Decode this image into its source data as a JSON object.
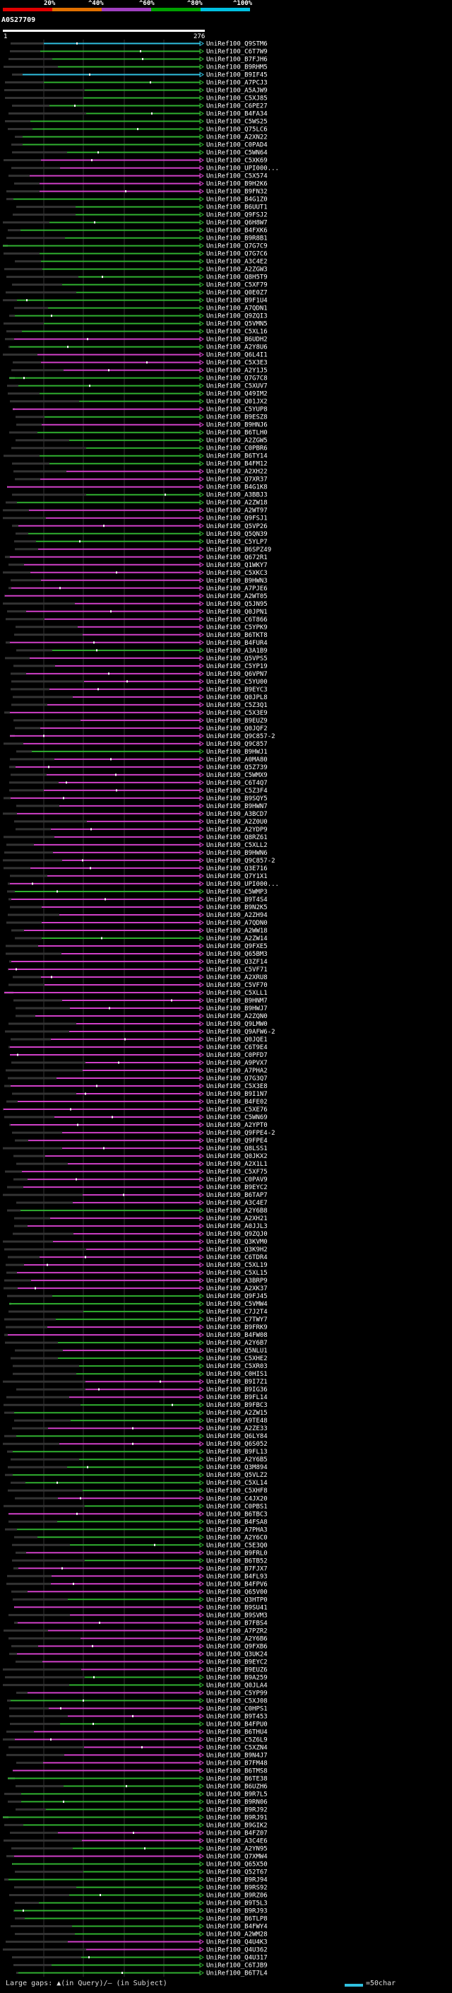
{
  "legend": {
    "labels": [
      "20%",
      "^40%",
      "^60%",
      "^80%",
      "^100%"
    ],
    "colors": [
      "#e00000",
      "#e07000",
      "#a040c0",
      "#00a000",
      "#00c0e0"
    ]
  },
  "query": {
    "title": "A0S27709",
    "start": "1",
    "end": "276"
  },
  "colors": {
    "background": "#000000",
    "gap": "#333333",
    "magenta": "#d040c8",
    "green": "#30b030",
    "cyan": "#30c0e0",
    "ruler": "#ffffff"
  },
  "rows": [
    {
      "label": "UniRef100_Q9STM6",
      "color": "cyan"
    },
    {
      "label": "UniRef100_C6T7W9",
      "color": "green"
    },
    {
      "label": "UniRef100_B7FJH6",
      "color": "green"
    },
    {
      "label": "UniRef100_B9RHM5",
      "color": "green"
    },
    {
      "label": "UniRef100_B9IF45",
      "color": "cyan"
    },
    {
      "label": "UniRef100_A7PCJ3",
      "color": "green"
    },
    {
      "label": "UniRef100_A5AJW9",
      "color": "green"
    },
    {
      "label": "UniRef100_C5XJ85",
      "color": "green"
    },
    {
      "label": "UniRef100_C6PE27",
      "color": "green"
    },
    {
      "label": "UniRef100_B4FA34",
      "color": "green"
    },
    {
      "label": "UniRef100_C5WS25",
      "color": "green"
    },
    {
      "label": "UniRef100_Q75LC6",
      "color": "green"
    },
    {
      "label": "UniRef100_A2XN22",
      "color": "green"
    },
    {
      "label": "UniRef100_C0PAD4",
      "color": "green"
    },
    {
      "label": "UniRef100_C5WN64",
      "color": "green"
    },
    {
      "label": "UniRef100_C5XK69",
      "color": "magenta"
    },
    {
      "label": "UniRef100_UPI000...",
      "color": "magenta"
    },
    {
      "label": "UniRef100_C5X574",
      "color": "magenta"
    },
    {
      "label": "UniRef100_B9H2K6",
      "color": "magenta"
    },
    {
      "label": "UniRef100_B9FN32",
      "color": "magenta"
    },
    {
      "label": "UniRef100_B4G1Z0",
      "color": "green"
    },
    {
      "label": "UniRef100_B6UUT1",
      "color": "green"
    },
    {
      "label": "UniRef100_Q9FSJ2",
      "color": "green"
    },
    {
      "label": "UniRef100_Q6H8W7",
      "color": "green"
    },
    {
      "label": "UniRef100_B4FXK6",
      "color": "green"
    },
    {
      "label": "UniRef100_B9R8B1",
      "color": "green"
    },
    {
      "label": "UniRef100_Q7G7C9",
      "color": "green"
    },
    {
      "label": "UniRef100_Q7G7C6",
      "color": "green"
    },
    {
      "label": "UniRef100_A3C4E2",
      "color": "green"
    },
    {
      "label": "UniRef100_A2ZGW3",
      "color": "green"
    },
    {
      "label": "UniRef100_Q8H5T9",
      "color": "green"
    },
    {
      "label": "UniRef100_C5XF79",
      "color": "green"
    },
    {
      "label": "UniRef100_Q0E0Z7",
      "color": "green"
    },
    {
      "label": "UniRef100_B9F1U4",
      "color": "green"
    },
    {
      "label": "UniRef100_A7QDN1",
      "color": "green"
    },
    {
      "label": "UniRef100_Q9ZQI3",
      "color": "green"
    },
    {
      "label": "UniRef100_Q5VMN5",
      "color": "green"
    },
    {
      "label": "UniRef100_C5XL16",
      "color": "green"
    },
    {
      "label": "UniRef100_B6UDH2",
      "color": "magenta"
    },
    {
      "label": "UniRef100_A2Y8U6",
      "color": "green"
    },
    {
      "label": "UniRef100_Q6L4I1",
      "color": "magenta"
    },
    {
      "label": "UniRef100_C5X3E3",
      "color": "magenta"
    },
    {
      "label": "UniRef100_A2Y1J5",
      "color": "magenta"
    },
    {
      "label": "UniRef100_Q7G7C8",
      "color": "green"
    },
    {
      "label": "UniRef100_C5XUV7",
      "color": "green"
    },
    {
      "label": "UniRef100_Q49IM2",
      "color": "green"
    },
    {
      "label": "UniRef100_Q01JX2",
      "color": "green"
    },
    {
      "label": "UniRef100_C5YUP8",
      "color": "magenta"
    },
    {
      "label": "UniRef100_B9ESZ8",
      "color": "green"
    },
    {
      "label": "UniRef100_B9HNJ6",
      "color": "magenta"
    },
    {
      "label": "UniRef100_B6TLH0",
      "color": "green"
    },
    {
      "label": "UniRef100_A2ZGW5",
      "color": "green"
    },
    {
      "label": "UniRef100_C0PBR6",
      "color": "green"
    },
    {
      "label": "UniRef100_B6TY14",
      "color": "green"
    },
    {
      "label": "UniRef100_B4FM12",
      "color": "green"
    },
    {
      "label": "UniRef100_A2XH22",
      "color": "magenta"
    },
    {
      "label": "UniRef100_Q7XR37",
      "color": "magenta"
    },
    {
      "label": "UniRef100_B4G1K8",
      "color": "magenta"
    },
    {
      "label": "UniRef100_A3BBJ3",
      "color": "green"
    },
    {
      "label": "UniRef100_A2ZW18",
      "color": "green"
    },
    {
      "label": "UniRef100_A2WT97",
      "color": "magenta"
    },
    {
      "label": "UniRef100_Q9FSJ1",
      "color": "magenta"
    },
    {
      "label": "UniRef100_Q5VP26",
      "color": "magenta"
    },
    {
      "label": "UniRef100_Q5QN39",
      "color": "green"
    },
    {
      "label": "UniRef100_C5YLP7",
      "color": "green"
    },
    {
      "label": "UniRef100_B6SPZ49",
      "color": "magenta"
    },
    {
      "label": "UniRef100_Q672R1",
      "color": "magenta"
    },
    {
      "label": "UniRef100_Q1WKY7",
      "color": "magenta"
    },
    {
      "label": "UniRef100_C5XKC3",
      "color": "magenta"
    },
    {
      "label": "UniRef100_B9HWN3",
      "color": "magenta"
    },
    {
      "label": "UniRef100_A7PJE6",
      "color": "magenta"
    },
    {
      "label": "UniRef100_A2WT05",
      "color": "magenta"
    },
    {
      "label": "UniRef100_Q5JN95",
      "color": "magenta"
    },
    {
      "label": "UniRef100_Q0JPN1",
      "color": "magenta"
    },
    {
      "label": "UniRef100_C6T866",
      "color": "magenta"
    },
    {
      "label": "UniRef100_C5YPK9",
      "color": "magenta"
    },
    {
      "label": "UniRef100_B6TKT8",
      "color": "magenta"
    },
    {
      "label": "UniRef100_B4FUR4",
      "color": "magenta"
    },
    {
      "label": "UniRef100_A3A1B9",
      "color": "green"
    },
    {
      "label": "UniRef100_Q5VPS5",
      "color": "magenta"
    },
    {
      "label": "UniRef100_C5YP19",
      "color": "magenta"
    },
    {
      "label": "UniRef100_Q6VPN7",
      "color": "magenta"
    },
    {
      "label": "UniRef100_C5YU00",
      "color": "magenta"
    },
    {
      "label": "UniRef100_B9EYC3",
      "color": "magenta"
    },
    {
      "label": "UniRef100_Q0JPL8",
      "color": "magenta"
    },
    {
      "label": "UniRef100_C5Z3Q1",
      "color": "magenta"
    },
    {
      "label": "UniRef100_C5X3E9",
      "color": "magenta"
    },
    {
      "label": "UniRef100_B9EUZ9",
      "color": "magenta"
    },
    {
      "label": "UniRef100_Q0JQF2",
      "color": "magenta"
    },
    {
      "label": "UniRef100_Q9C857-2",
      "color": "magenta"
    },
    {
      "label": "UniRef100_Q9C857",
      "color": "magenta"
    },
    {
      "label": "UniRef100_B9HWJ1",
      "color": "green"
    },
    {
      "label": "UniRef100_A0MA80",
      "color": "magenta"
    },
    {
      "label": "UniRef100_Q5Z739",
      "color": "magenta"
    },
    {
      "label": "UniRef100_C5WMX9",
      "color": "magenta"
    },
    {
      "label": "UniRef100_C6T4Q7",
      "color": "magenta"
    },
    {
      "label": "UniRef100_C5Z3F4",
      "color": "magenta"
    },
    {
      "label": "UniRef100_B9SQY5",
      "color": "magenta"
    },
    {
      "label": "UniRef100_B9HWN7",
      "color": "magenta"
    },
    {
      "label": "UniRef100_A3BCD7",
      "color": "magenta"
    },
    {
      "label": "UniRef100_A2Z0U0",
      "color": "magenta"
    },
    {
      "label": "UniRef100_A2YDP9",
      "color": "magenta"
    },
    {
      "label": "UniRef100_Q8RZ61",
      "color": "magenta"
    },
    {
      "label": "UniRef100_C5XLL2",
      "color": "magenta"
    },
    {
      "label": "UniRef100_B9HWN6",
      "color": "magenta"
    },
    {
      "label": "UniRef100_Q9C857-2",
      "color": "magenta"
    },
    {
      "label": "UniRef100_Q3E716",
      "color": "magenta"
    },
    {
      "label": "UniRef100_Q7Y1X1",
      "color": "magenta"
    },
    {
      "label": "UniRef100_UPI000...",
      "color": "magenta"
    },
    {
      "label": "UniRef100_C5WMP3",
      "color": "green"
    },
    {
      "label": "UniRef100_B9T4S4",
      "color": "magenta"
    },
    {
      "label": "UniRef100_B9N2K5",
      "color": "magenta"
    },
    {
      "label": "UniRef100_A2ZH94",
      "color": "magenta"
    },
    {
      "label": "UniRef100_A7QDN0",
      "color": "magenta"
    },
    {
      "label": "UniRef100_A2WW18",
      "color": "magenta"
    },
    {
      "label": "UniRef100_A2ZW14",
      "color": "green"
    },
    {
      "label": "UniRef100_Q9FXE5",
      "color": "magenta"
    },
    {
      "label": "UniRef100_Q65BM3",
      "color": "magenta"
    },
    {
      "label": "UniRef100_Q3ZF14",
      "color": "magenta"
    },
    {
      "label": "UniRef100_C5VF71",
      "color": "magenta"
    },
    {
      "label": "UniRef100_A2XRU8",
      "color": "magenta"
    },
    {
      "label": "UniRef100_C5VF70",
      "color": "magenta"
    },
    {
      "label": "UniRef100_C5XLL1",
      "color": "magenta"
    },
    {
      "label": "UniRef100_B9HNM7",
      "color": "magenta"
    },
    {
      "label": "UniRef100_B9HWJ7",
      "color": "magenta"
    },
    {
      "label": "UniRef100_A2ZQN0",
      "color": "magenta"
    },
    {
      "label": "UniRef100_Q9LMW0",
      "color": "magenta"
    },
    {
      "label": "UniRef100_Q9AFW6-2",
      "color": "magenta"
    },
    {
      "label": "UniRef100_Q0JQE1",
      "color": "magenta"
    },
    {
      "label": "UniRef100_C6T9E4",
      "color": "magenta"
    },
    {
      "label": "UniRef100_C0PFD7",
      "color": "magenta"
    },
    {
      "label": "UniRef100_A9PVX7",
      "color": "magenta"
    },
    {
      "label": "UniRef100_A7PHA2",
      "color": "magenta"
    },
    {
      "label": "UniRef100_Q7G3Q7",
      "color": "magenta"
    },
    {
      "label": "UniRef100_C5X3E8",
      "color": "magenta"
    },
    {
      "label": "UniRef100_B9I1N7",
      "color": "magenta"
    },
    {
      "label": "UniRef100_B4FE02",
      "color": "magenta"
    },
    {
      "label": "UniRef100_C5XE76",
      "color": "magenta"
    },
    {
      "label": "UniRef100_C5WN69",
      "color": "magenta"
    },
    {
      "label": "UniRef100_A2YPT0",
      "color": "magenta"
    },
    {
      "label": "UniRef100_Q9FPE4-2",
      "color": "magenta"
    },
    {
      "label": "UniRef100_Q9FPE4",
      "color": "magenta"
    },
    {
      "label": "UniRef100_Q8LSS1",
      "color": "magenta"
    },
    {
      "label": "UniRef100_Q0JKX2",
      "color": "magenta"
    },
    {
      "label": "UniRef100_A2X1L1",
      "color": "magenta"
    },
    {
      "label": "UniRef100_C5XF75",
      "color": "magenta"
    },
    {
      "label": "UniRef100_C0PAV9",
      "color": "magenta"
    },
    {
      "label": "UniRef100_B9EYC2",
      "color": "magenta"
    },
    {
      "label": "UniRef100_B6TAP7",
      "color": "magenta"
    },
    {
      "label": "UniRef100_A3C4E7",
      "color": "magenta"
    },
    {
      "label": "UniRef100_A2Y6B8",
      "color": "green"
    },
    {
      "label": "UniRef100_A2XH21",
      "color": "magenta"
    },
    {
      "label": "UniRef100_A0JJL3",
      "color": "magenta"
    },
    {
      "label": "UniRef100_Q9ZQJ0",
      "color": "magenta"
    },
    {
      "label": "UniRef100_Q3KVM0",
      "color": "magenta"
    },
    {
      "label": "UniRef100_Q3K9H2",
      "color": "magenta"
    },
    {
      "label": "UniRef100_C6TDR4",
      "color": "magenta"
    },
    {
      "label": "UniRef100_C5XL19",
      "color": "magenta"
    },
    {
      "label": "UniRef100_C5XL15",
      "color": "magenta"
    },
    {
      "label": "UniRef100_A3BRP9",
      "color": "magenta"
    },
    {
      "label": "UniRef100_A2XK37",
      "color": "magenta"
    },
    {
      "label": "UniRef100_Q9FJ45",
      "color": "green"
    },
    {
      "label": "UniRef100_C5VMW4",
      "color": "green"
    },
    {
      "label": "UniRef100_C7J2T4",
      "color": "green"
    },
    {
      "label": "UniRef100_C7TWY7",
      "color": "green"
    },
    {
      "label": "UniRef100_B9FRK9",
      "color": "magenta"
    },
    {
      "label": "UniRef100_B4FW08",
      "color": "magenta"
    },
    {
      "label": "UniRef100_A2Y6B7",
      "color": "green"
    },
    {
      "label": "UniRef100_Q5NLU1",
      "color": "magenta"
    },
    {
      "label": "UniRef100_C5XHE2",
      "color": "green"
    },
    {
      "label": "UniRef100_C5XR03",
      "color": "green"
    },
    {
      "label": "UniRef100_C0HIS1",
      "color": "green"
    },
    {
      "label": "UniRef100_B9I7Z1",
      "color": "magenta"
    },
    {
      "label": "UniRef100_B9IG36",
      "color": "magenta"
    },
    {
      "label": "UniRef100_B9FL14",
      "color": "magenta"
    },
    {
      "label": "UniRef100_B9FBC3",
      "color": "green"
    },
    {
      "label": "UniRef100_A2ZW15",
      "color": "green"
    },
    {
      "label": "UniRef100_A9TE48",
      "color": "green"
    },
    {
      "label": "UniRef100_A2ZE33",
      "color": "magenta"
    },
    {
      "label": "UniRef100_Q6LY84",
      "color": "green"
    },
    {
      "label": "UniRef100_Q6S052",
      "color": "magenta"
    },
    {
      "label": "UniRef100_B9FL13",
      "color": "green"
    },
    {
      "label": "UniRef100_A2Y6B5",
      "color": "green"
    },
    {
      "label": "UniRef100_Q3M894",
      "color": "green"
    },
    {
      "label": "UniRef100_Q5VLZ2",
      "color": "green"
    },
    {
      "label": "UniRef100_C5XL14",
      "color": "green"
    },
    {
      "label": "UniRef100_C5XHF8",
      "color": "green"
    },
    {
      "label": "UniRef100_C4JX20",
      "color": "magenta"
    },
    {
      "label": "UniRef100_C0PBS1",
      "color": "green"
    },
    {
      "label": "UniRef100_B6TBC3",
      "color": "magenta"
    },
    {
      "label": "UniRef100_B4FSA8",
      "color": "green"
    },
    {
      "label": "UniRef100_A7PHA3",
      "color": "green"
    },
    {
      "label": "UniRef100_A2Y6C0",
      "color": "green"
    },
    {
      "label": "UniRef100_C5E3Q0",
      "color": "green"
    },
    {
      "label": "UniRef100_B9FRL0",
      "color": "magenta"
    },
    {
      "label": "UniRef100_B6TB52",
      "color": "green"
    },
    {
      "label": "UniRef100_B7FJX7",
      "color": "magenta"
    },
    {
      "label": "UniRef100_B4FL93",
      "color": "magenta"
    },
    {
      "label": "UniRef100_B4FPV6",
      "color": "magenta"
    },
    {
      "label": "UniRef100_Q65V00",
      "color": "magenta"
    },
    {
      "label": "UniRef100_Q3HTP0",
      "color": "green"
    },
    {
      "label": "UniRef100_B9SU41",
      "color": "magenta"
    },
    {
      "label": "UniRef100_B9SVM3",
      "color": "magenta"
    },
    {
      "label": "UniRef100_B7FBS4",
      "color": "magenta"
    },
    {
      "label": "UniRef100_A7PZR2",
      "color": "magenta"
    },
    {
      "label": "UniRef100_A2Y6B6",
      "color": "magenta"
    },
    {
      "label": "UniRef100_Q9FXB6",
      "color": "magenta"
    },
    {
      "label": "UniRef100_Q3UK24",
      "color": "magenta"
    },
    {
      "label": "UniRef100_B9EYC2",
      "color": "magenta"
    },
    {
      "label": "UniRef100_B9EUZ6",
      "color": "magenta"
    },
    {
      "label": "UniRef100_B9A259",
      "color": "green"
    },
    {
      "label": "UniRef100_Q0JLA4",
      "color": "green"
    },
    {
      "label": "UniRef100_C5YP99",
      "color": "magenta"
    },
    {
      "label": "UniRef100_C5XJ08",
      "color": "green"
    },
    {
      "label": "UniRef100_C0HPS1",
      "color": "magenta"
    },
    {
      "label": "UniRef100_B9T453",
      "color": "magenta"
    },
    {
      "label": "UniRef100_B4FPU0",
      "color": "green"
    },
    {
      "label": "UniRef100_B6THU4",
      "color": "magenta"
    },
    {
      "label": "UniRef100_C5Z6L9",
      "color": "magenta"
    },
    {
      "label": "UniRef100_C5XZN4",
      "color": "magenta"
    },
    {
      "label": "UniRef100_B9N4J7",
      "color": "magenta"
    },
    {
      "label": "UniRef100_B7FM48",
      "color": "magenta"
    },
    {
      "label": "UniRef100_B6TMS8",
      "color": "magenta"
    },
    {
      "label": "UniRef100_B6TE38",
      "color": "green"
    },
    {
      "label": "UniRef100_B6UZH6",
      "color": "green"
    },
    {
      "label": "UniRef100_B9R7L5",
      "color": "green"
    },
    {
      "label": "UniRef100_B9RN06",
      "color": "green"
    },
    {
      "label": "UniRef100_B9RJ92",
      "color": "green"
    },
    {
      "label": "UniRef100_B9RJ91",
      "color": "green"
    },
    {
      "label": "UniRef100_B9GIK2",
      "color": "green"
    },
    {
      "label": "UniRef100_B4FZ07",
      "color": "magenta"
    },
    {
      "label": "UniRef100_A3C4E6",
      "color": "magenta"
    },
    {
      "label": "UniRef100_A2YN95",
      "color": "green"
    },
    {
      "label": "UniRef100_Q7XMW4",
      "color": "magenta"
    },
    {
      "label": "UniRef100_Q65X50",
      "color": "green"
    },
    {
      "label": "UniRef100_Q52T67",
      "color": "green"
    },
    {
      "label": "UniRef100_B9RJ94",
      "color": "green"
    },
    {
      "label": "UniRef100_B9RS92",
      "color": "green"
    },
    {
      "label": "UniRef100_B9RZ06",
      "color": "green"
    },
    {
      "label": "UniRef100_B9T5L3",
      "color": "green"
    },
    {
      "label": "UniRef100_B9RJ93",
      "color": "green"
    },
    {
      "label": "UniRef100_B6TLP8",
      "color": "green"
    },
    {
      "label": "UniRef100_B4FWY4",
      "color": "green"
    },
    {
      "label": "UniRef100_A2WM28",
      "color": "green"
    },
    {
      "label": "UniRef100_Q4U4K3",
      "color": "magenta"
    },
    {
      "label": "UniRef100_Q4U362",
      "color": "magenta"
    },
    {
      "label": "UniRef100_Q4U317",
      "color": "green"
    },
    {
      "label": "UniRef100_C6TJB9",
      "color": "green"
    },
    {
      "label": "UniRef100_B6T7L4",
      "color": "green"
    }
  ],
  "footer": {
    "text": "Large gaps: ▲(in Query)/— (in Subject)",
    "scale_label": "=50char"
  }
}
